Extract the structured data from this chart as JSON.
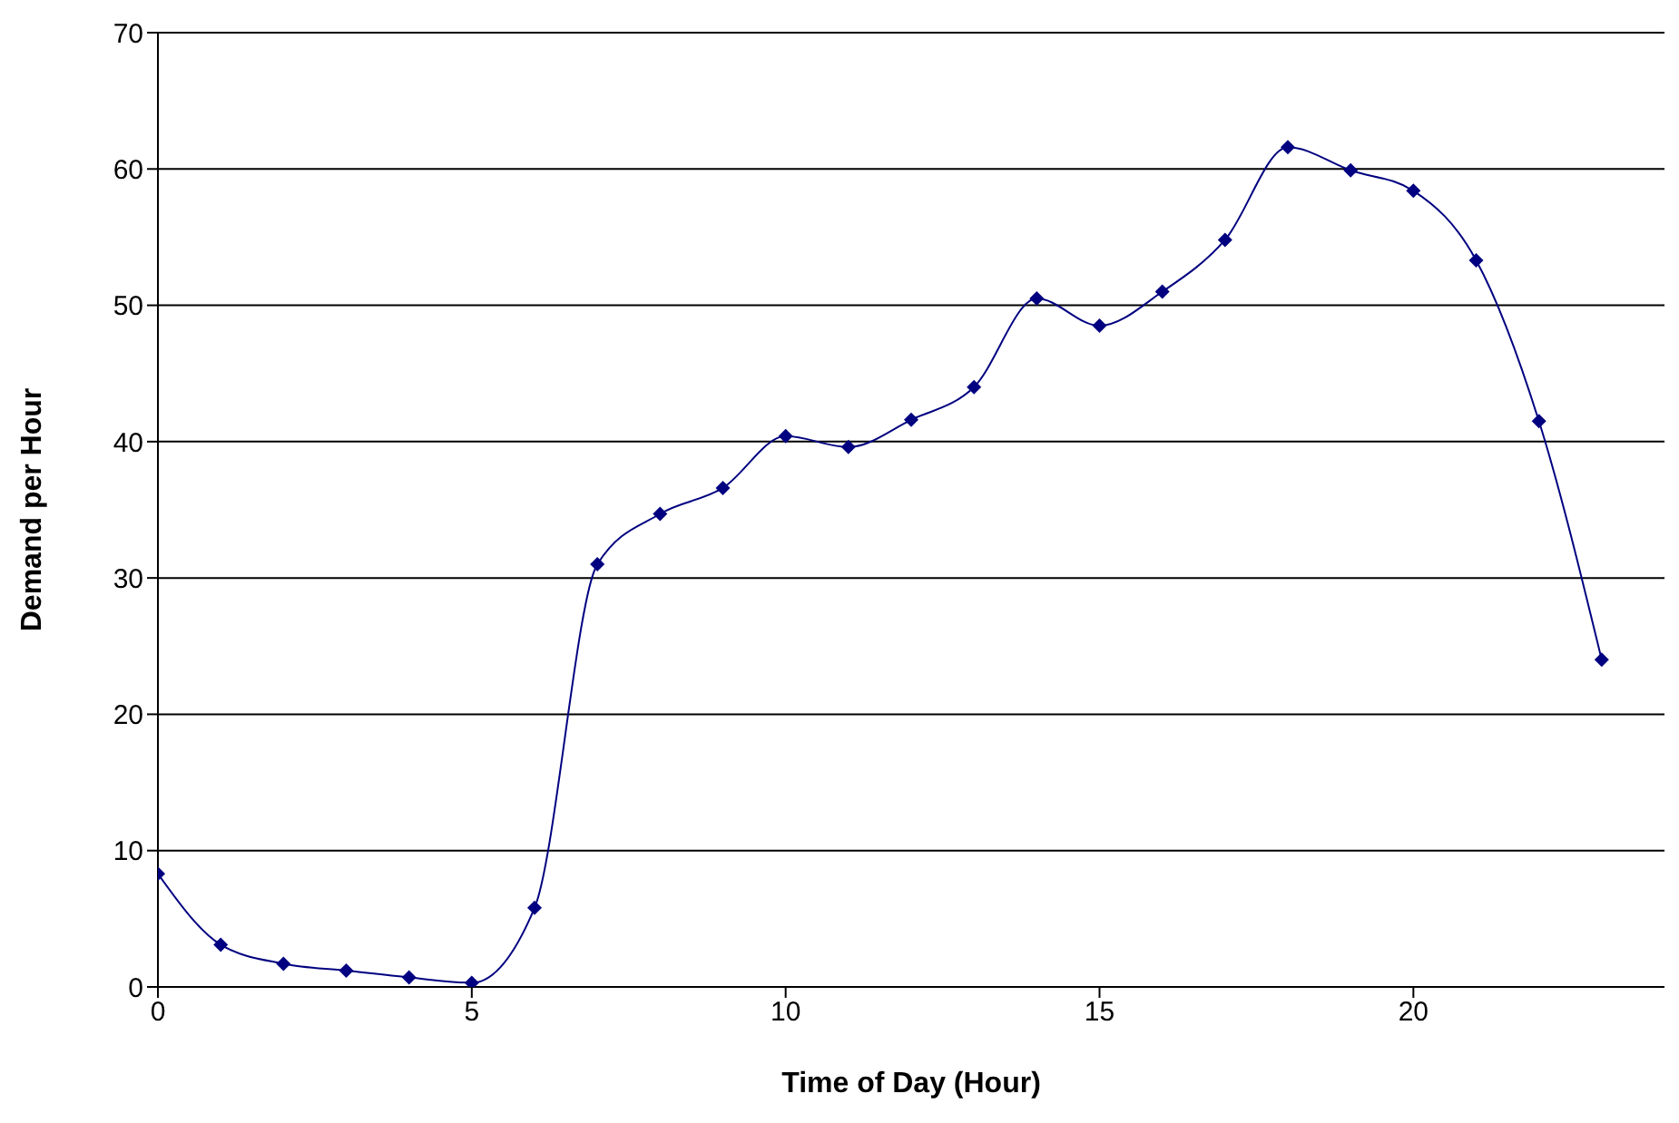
{
  "chart_data": {
    "type": "line",
    "xlabel": "Time of Day (Hour)",
    "ylabel": "Demand per Hour",
    "x": [
      0,
      1,
      2,
      3,
      4,
      5,
      6,
      7,
      8,
      9,
      10,
      11,
      12,
      13,
      14,
      15,
      16,
      17,
      18,
      19,
      20,
      21,
      22,
      23
    ],
    "series": [
      {
        "color": "#000080",
        "values": [
          8.3,
          3.1,
          1.7,
          1.2,
          0.7,
          0.3,
          5.8,
          31.0,
          34.7,
          36.6,
          40.4,
          39.6,
          41.6,
          44.0,
          50.5,
          48.5,
          51.0,
          54.8,
          61.6,
          59.9,
          58.4,
          53.3,
          41.5,
          24.0
        ]
      }
    ],
    "xlim": [
      0,
      24
    ],
    "xticks": [
      0,
      5,
      10,
      15,
      20
    ],
    "ylim": [
      0,
      70
    ],
    "yticks": [
      0,
      10,
      20,
      30,
      40,
      50,
      60,
      70
    ],
    "grid": "y",
    "legend": false,
    "marker": "diamond",
    "line_style": "solid"
  }
}
